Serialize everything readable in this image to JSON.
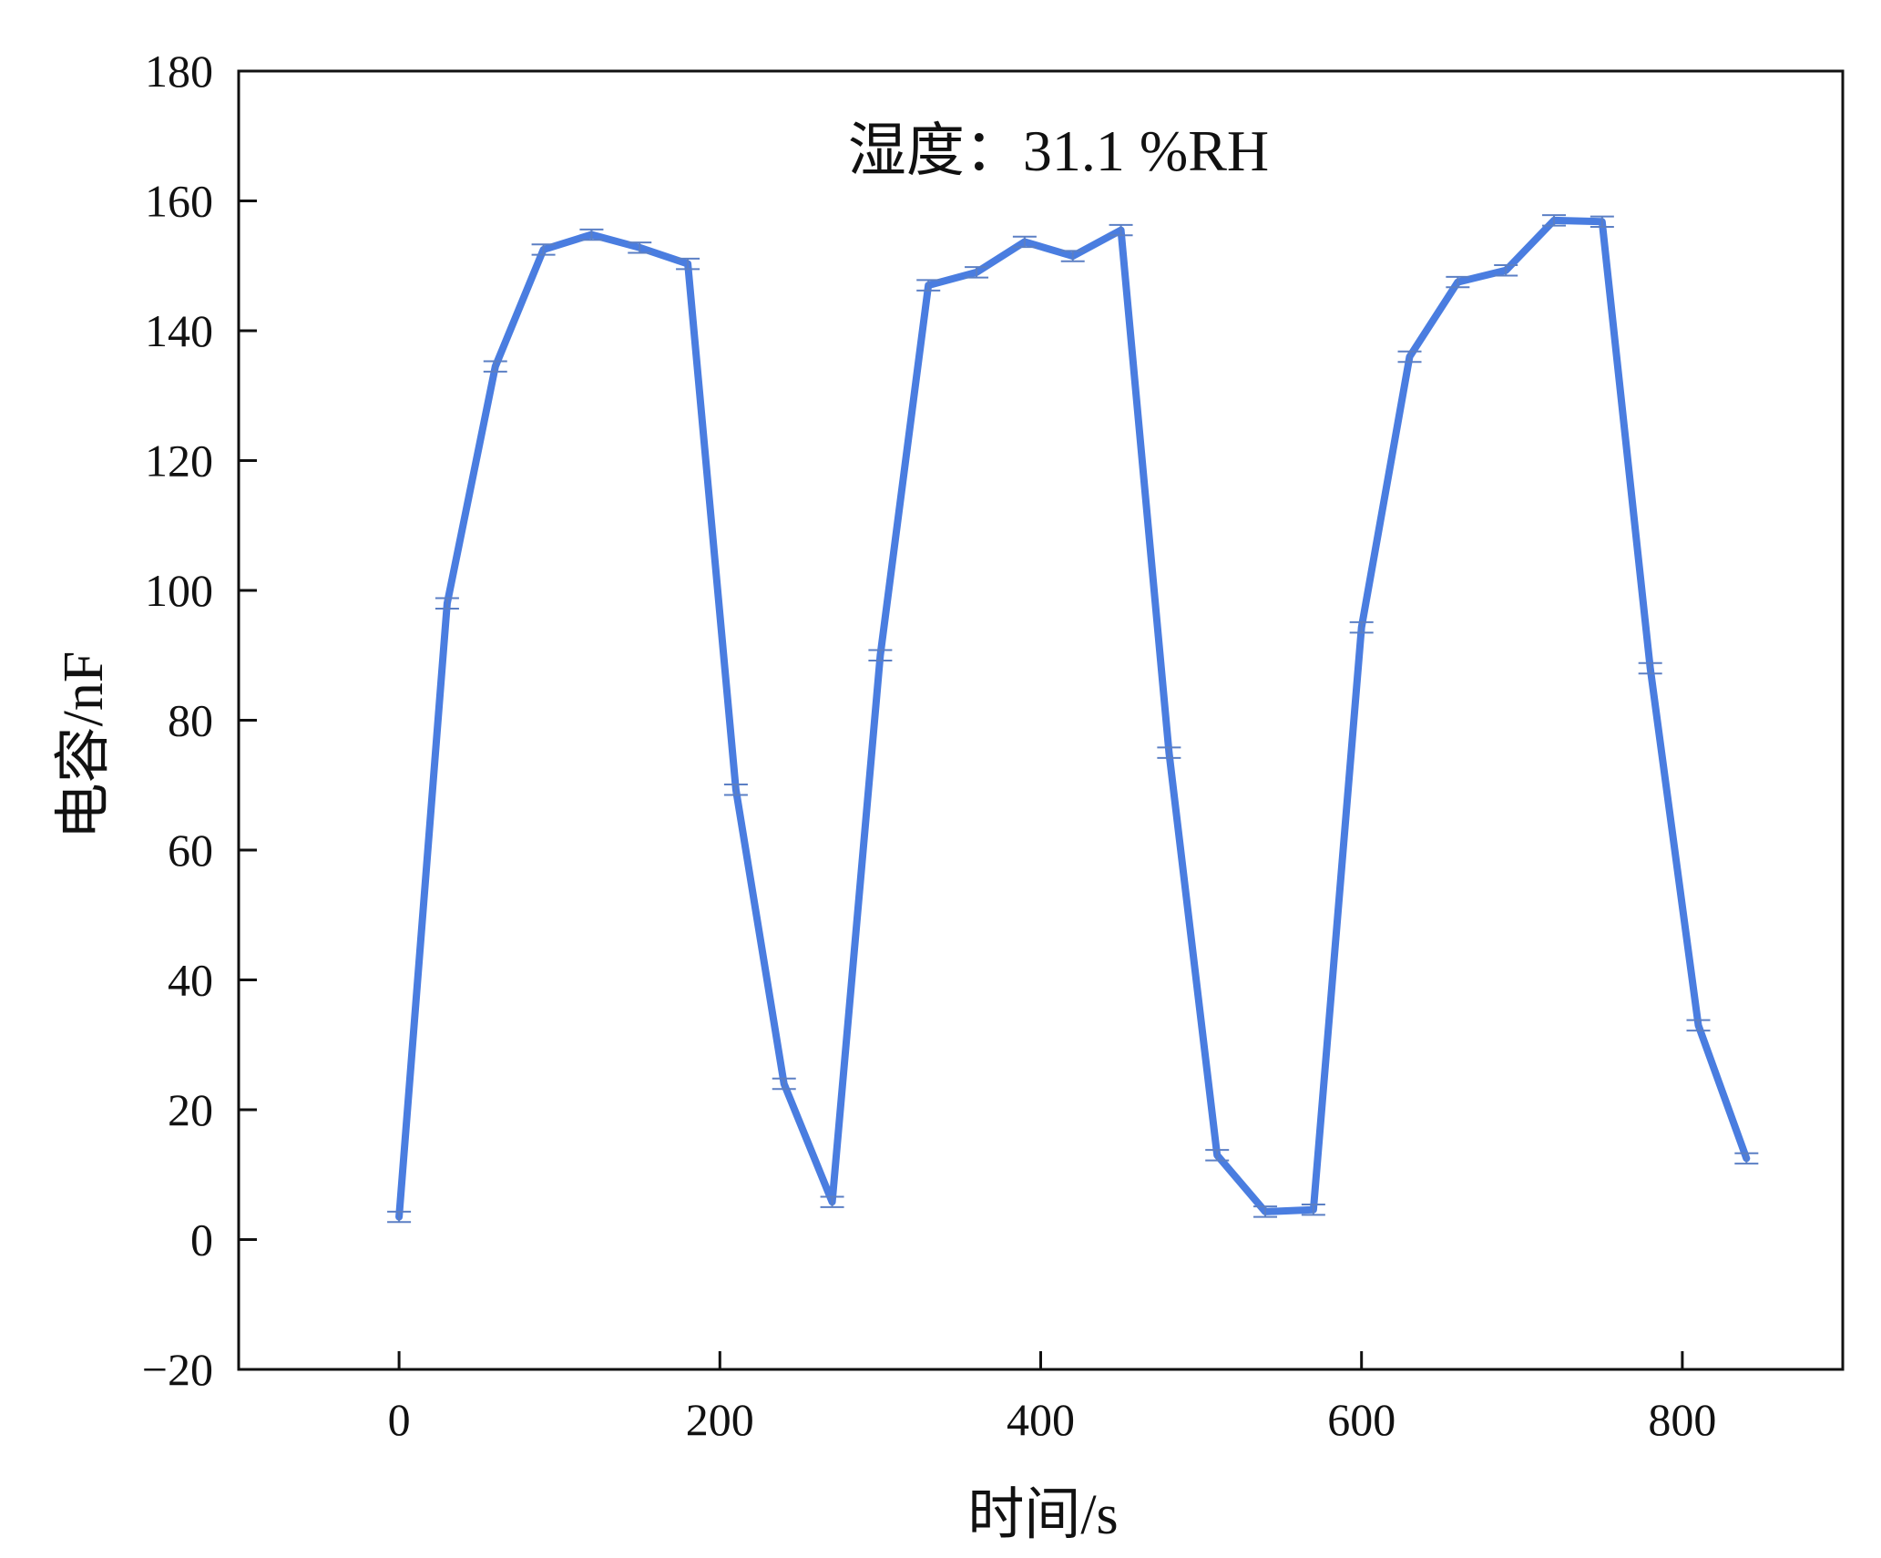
{
  "chart_data": {
    "type": "line",
    "title": "",
    "annotation": "湿度：31.1 %RH",
    "xlabel": "时间/s",
    "ylabel": "电容/nF",
    "xlim": [
      -100,
      900
    ],
    "ylim": [
      -20,
      180
    ],
    "xticks": [
      0,
      200,
      400,
      600,
      800
    ],
    "yticks": [
      -20,
      0,
      20,
      40,
      60,
      80,
      100,
      120,
      140,
      160,
      180
    ],
    "xtick_labels": [
      "0",
      "200",
      "400",
      "600",
      "800"
    ],
    "ytick_labels": [
      "−20",
      "0",
      "20",
      "40",
      "60",
      "80",
      "100",
      "120",
      "140",
      "160",
      "180"
    ],
    "grid": false,
    "legend": "none",
    "series": [
      {
        "color": "#4a7de0",
        "x": [
          0,
          30,
          60,
          90,
          120,
          150,
          180,
          210,
          240,
          270,
          300,
          330,
          360,
          390,
          420,
          450,
          480,
          510,
          540,
          570,
          600,
          630,
          660,
          690,
          720,
          750,
          780,
          810,
          840
        ],
        "y": [
          3.5,
          98,
          134.5,
          152.5,
          154.8,
          152.8,
          150.3,
          69.3,
          24,
          5.8,
          90,
          147,
          149,
          153.7,
          151.5,
          155.5,
          75,
          13,
          4.3,
          4.6,
          94.3,
          136,
          147.5,
          149.3,
          157,
          156.8,
          88,
          33,
          12.5
        ],
        "error": [
          0.8,
          0.8,
          0.8,
          0.8,
          0.8,
          0.8,
          0.8,
          0.8,
          0.8,
          0.8,
          0.8,
          0.8,
          0.8,
          0.8,
          0.8,
          0.8,
          0.8,
          0.8,
          0.8,
          0.8,
          0.8,
          0.8,
          0.8,
          0.8,
          0.8,
          0.8,
          0.8,
          0.8,
          0.8
        ]
      }
    ]
  }
}
